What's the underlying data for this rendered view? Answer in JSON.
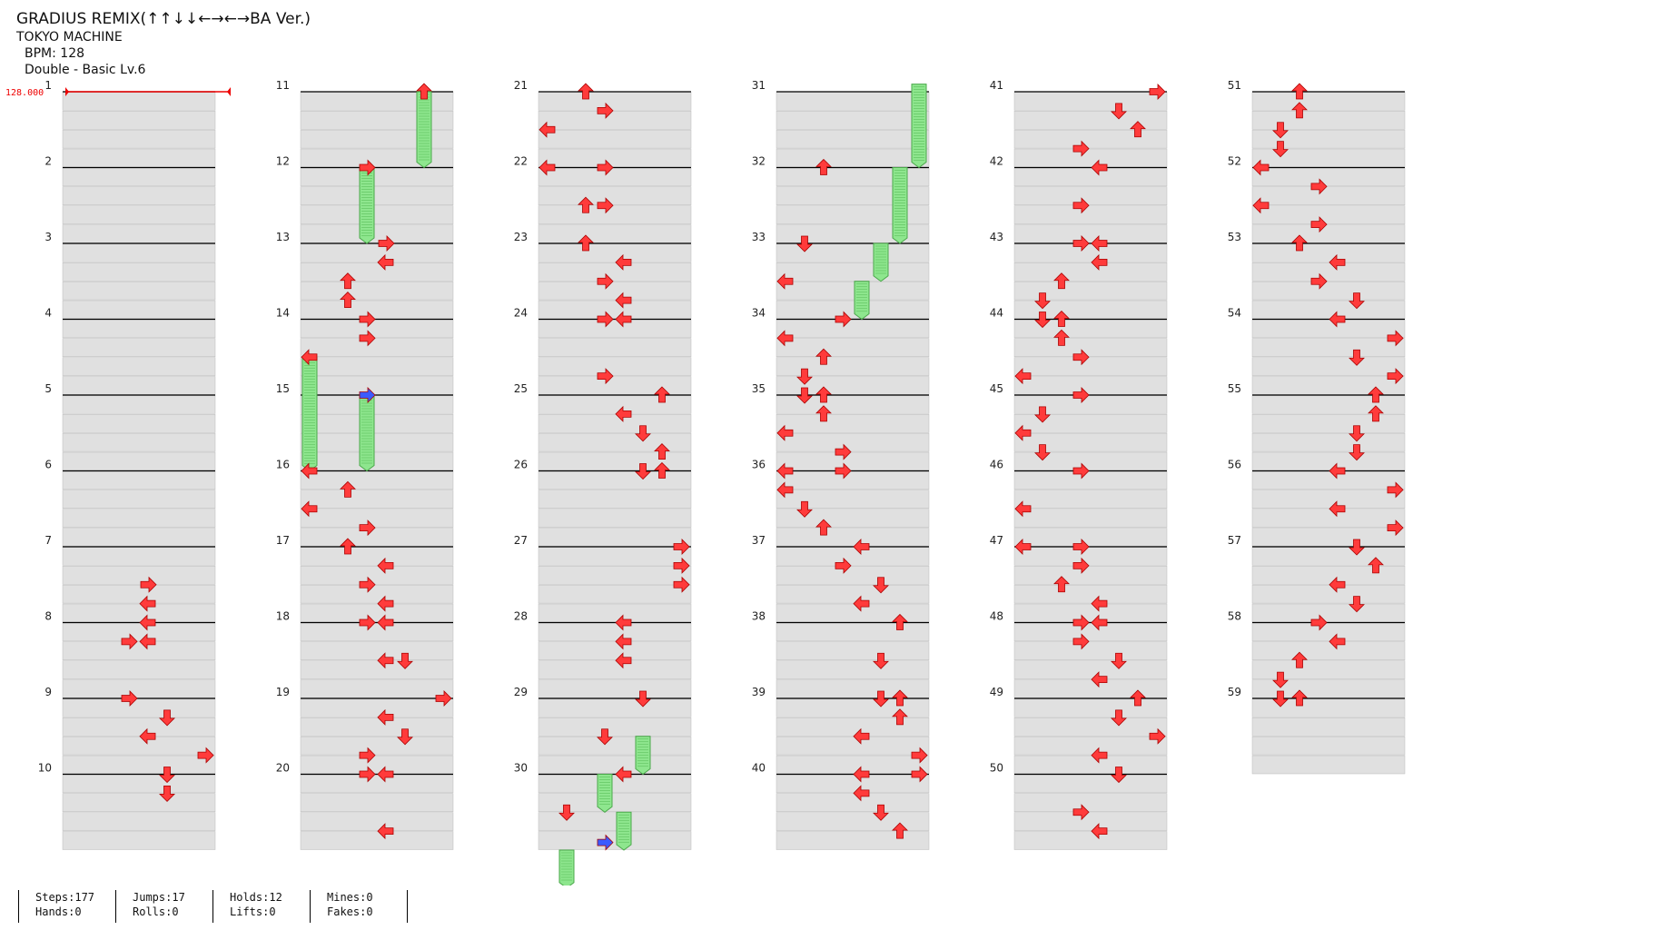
{
  "header": {
    "title": "GRADIUS REMIX(↑↑↓↓←→←→BA Ver.)",
    "artist": "TOKYO MACHINE",
    "bpm": "BPM: 128",
    "difficulty": "Double - Basic  Lv.6"
  },
  "bpm_marker": "128.000",
  "measure_numbers": [
    "1",
    "2",
    "3",
    "4",
    "5",
    "6",
    "7",
    "8",
    "9",
    "10",
    "11",
    "12",
    "13",
    "14",
    "15",
    "16",
    "17",
    "18",
    "19",
    "20",
    "21",
    "22",
    "23",
    "24",
    "25",
    "26",
    "27",
    "28",
    "29",
    "30",
    "31",
    "32",
    "33",
    "34",
    "35",
    "36",
    "37",
    "38",
    "39",
    "40",
    "41",
    "42",
    "43",
    "44",
    "45",
    "46",
    "47",
    "48",
    "49",
    "50",
    "51",
    "52",
    "53",
    "54",
    "55",
    "56",
    "57",
    "58",
    "59"
  ],
  "stats": [
    {
      "top": "Steps:177",
      "bottom": "Hands:0"
    },
    {
      "top": "Jumps:17",
      "bottom": "Rolls:0"
    },
    {
      "top": "Holds:12",
      "bottom": "Lifts:0"
    },
    {
      "top": "Mines:0",
      "bottom": "Fakes:0"
    }
  ],
  "colors": {
    "arrow": "#ff3b3b",
    "arrow_quarter": "#3b5bff",
    "hold": "#8ee68e",
    "band": "#e0e0e0",
    "line": "#000000",
    "bpm": "#ee0000"
  },
  "chart_data": {
    "type": "step-chart",
    "lanes": [
      "left",
      "down",
      "up",
      "right",
      "left",
      "down",
      "up",
      "right"
    ],
    "columns": [
      {
        "measures": [
          "1",
          "2",
          "3",
          "4",
          "5",
          "6",
          "7",
          "8",
          "9",
          "10"
        ]
      },
      {
        "measures": [
          "11",
          "12",
          "13",
          "14",
          "15",
          "16",
          "17",
          "18",
          "19",
          "20"
        ]
      },
      {
        "measures": [
          "21",
          "22",
          "23",
          "24",
          "25",
          "26",
          "27",
          "28",
          "29",
          "30"
        ]
      },
      {
        "measures": [
          "31",
          "32",
          "33",
          "34",
          "35",
          "36",
          "37",
          "38",
          "39",
          "40"
        ]
      },
      {
        "measures": [
          "41",
          "42",
          "43",
          "44",
          "45",
          "46",
          "47",
          "48",
          "49",
          "50"
        ]
      },
      {
        "measures": [
          "51",
          "52",
          "53",
          "54",
          "55",
          "56",
          "57",
          "58",
          "59"
        ]
      }
    ],
    "notes": [
      [
        0,
        6.5,
        4,
        "right"
      ],
      [
        0,
        6.75,
        4,
        "left"
      ],
      [
        0,
        7,
        4,
        "left"
      ],
      [
        0,
        7.25,
        3,
        "right"
      ],
      [
        0,
        7.25,
        4,
        "left"
      ],
      [
        0,
        8,
        3,
        "right"
      ],
      [
        0,
        8.25,
        5,
        "down"
      ],
      [
        0,
        8.5,
        4,
        "left"
      ],
      [
        0,
        8.75,
        7,
        "right"
      ],
      [
        0,
        9,
        5,
        "down"
      ],
      [
        0,
        9.25,
        5,
        "down"
      ],
      [
        1,
        0,
        6,
        "up"
      ],
      [
        1,
        1,
        3,
        "right"
      ],
      [
        1,
        2,
        4,
        "right"
      ],
      [
        1,
        2.25,
        4,
        "left"
      ],
      [
        1,
        2.5,
        2,
        "up"
      ],
      [
        1,
        2.75,
        2,
        "up"
      ],
      [
        1,
        3,
        3,
        "right"
      ],
      [
        1,
        3.25,
        3,
        "right"
      ],
      [
        1,
        3.5,
        0,
        "left"
      ],
      [
        1,
        4,
        3,
        "right",
        "blue"
      ],
      [
        1,
        5,
        0,
        "left"
      ],
      [
        1,
        5.25,
        2,
        "up"
      ],
      [
        1,
        5.5,
        0,
        "left"
      ],
      [
        1,
        5.75,
        3,
        "right"
      ],
      [
        1,
        6,
        2,
        "up"
      ],
      [
        1,
        6.25,
        4,
        "left"
      ],
      [
        1,
        6.5,
        3,
        "right"
      ],
      [
        1,
        6.75,
        4,
        "left"
      ],
      [
        1,
        7,
        3,
        "right"
      ],
      [
        1,
        7,
        4,
        "left"
      ],
      [
        1,
        7.5,
        4,
        "left"
      ],
      [
        1,
        7.5,
        5,
        "down"
      ],
      [
        1,
        8,
        7,
        "right"
      ],
      [
        1,
        8.25,
        4,
        "left"
      ],
      [
        1,
        8.5,
        5,
        "down"
      ],
      [
        1,
        8.75,
        3,
        "right"
      ],
      [
        1,
        9,
        3,
        "right"
      ],
      [
        1,
        9,
        4,
        "left"
      ],
      [
        1,
        9.75,
        4,
        "left"
      ],
      [
        2,
        0,
        2,
        "up"
      ],
      [
        2,
        0.25,
        3,
        "right"
      ],
      [
        2,
        0.5,
        0,
        "left"
      ],
      [
        2,
        1,
        0,
        "left"
      ],
      [
        2,
        1,
        3,
        "right"
      ],
      [
        2,
        1.5,
        2,
        "up"
      ],
      [
        2,
        1.5,
        3,
        "right"
      ],
      [
        2,
        2,
        2,
        "up"
      ],
      [
        2,
        2.25,
        4,
        "left"
      ],
      [
        2,
        2.5,
        3,
        "right"
      ],
      [
        2,
        2.75,
        4,
        "left"
      ],
      [
        2,
        3,
        3,
        "right"
      ],
      [
        2,
        3,
        4,
        "left"
      ],
      [
        2,
        3.75,
        3,
        "right"
      ],
      [
        2,
        4,
        6,
        "up"
      ],
      [
        2,
        4.25,
        4,
        "left"
      ],
      [
        2,
        4.5,
        5,
        "down"
      ],
      [
        2,
        4.75,
        6,
        "up"
      ],
      [
        2,
        5,
        5,
        "down"
      ],
      [
        2,
        5,
        6,
        "up"
      ],
      [
        2,
        6,
        7,
        "right"
      ],
      [
        2,
        6.25,
        7,
        "right"
      ],
      [
        2,
        6.5,
        7,
        "right"
      ],
      [
        2,
        7,
        4,
        "left"
      ],
      [
        2,
        7.25,
        4,
        "left"
      ],
      [
        2,
        7.5,
        4,
        "left"
      ],
      [
        2,
        8,
        5,
        "down"
      ],
      [
        2,
        8.5,
        3,
        "down"
      ],
      [
        2,
        9,
        4,
        "left"
      ],
      [
        2,
        9.5,
        1,
        "down"
      ],
      [
        2,
        9.9,
        3,
        "right",
        "blue"
      ],
      [
        3,
        1,
        2,
        "up"
      ],
      [
        3,
        2,
        1,
        "down"
      ],
      [
        3,
        2.5,
        0,
        "left"
      ],
      [
        3,
        3,
        3,
        "right"
      ],
      [
        3,
        3.25,
        0,
        "left"
      ],
      [
        3,
        3.5,
        2,
        "up"
      ],
      [
        3,
        3.75,
        1,
        "down"
      ],
      [
        3,
        4,
        1,
        "down"
      ],
      [
        3,
        4,
        2,
        "up"
      ],
      [
        3,
        4.25,
        2,
        "up"
      ],
      [
        3,
        4.5,
        0,
        "left"
      ],
      [
        3,
        4.75,
        3,
        "right"
      ],
      [
        3,
        5,
        0,
        "left"
      ],
      [
        3,
        5,
        3,
        "right"
      ],
      [
        3,
        5.25,
        0,
        "left"
      ],
      [
        3,
        5.5,
        1,
        "down"
      ],
      [
        3,
        5.75,
        2,
        "up"
      ],
      [
        3,
        6,
        4,
        "left"
      ],
      [
        3,
        6.25,
        3,
        "right"
      ],
      [
        3,
        6.5,
        5,
        "down"
      ],
      [
        3,
        6.75,
        4,
        "left"
      ],
      [
        3,
        7,
        6,
        "up"
      ],
      [
        3,
        7.5,
        5,
        "down"
      ],
      [
        3,
        8,
        5,
        "down"
      ],
      [
        3,
        8,
        6,
        "up"
      ],
      [
        3,
        8.25,
        6,
        "up"
      ],
      [
        3,
        8.5,
        4,
        "left"
      ],
      [
        3,
        8.75,
        7,
        "right"
      ],
      [
        3,
        9,
        4,
        "left"
      ],
      [
        3,
        9,
        7,
        "right"
      ],
      [
        3,
        9.25,
        4,
        "left"
      ],
      [
        3,
        9.5,
        5,
        "down"
      ],
      [
        3,
        9.75,
        6,
        "up"
      ],
      [
        4,
        0,
        7,
        "right"
      ],
      [
        4,
        0.25,
        5,
        "down"
      ],
      [
        4,
        0.5,
        6,
        "up"
      ],
      [
        4,
        0.75,
        3,
        "right"
      ],
      [
        4,
        1,
        4,
        "left"
      ],
      [
        4,
        1.5,
        3,
        "right"
      ],
      [
        4,
        2,
        3,
        "right"
      ],
      [
        4,
        2,
        4,
        "left"
      ],
      [
        4,
        2.25,
        4,
        "left"
      ],
      [
        4,
        2.5,
        2,
        "up"
      ],
      [
        4,
        2.75,
        1,
        "down"
      ],
      [
        4,
        3,
        1,
        "down"
      ],
      [
        4,
        3,
        2,
        "up"
      ],
      [
        4,
        3.25,
        2,
        "up"
      ],
      [
        4,
        3.5,
        3,
        "right"
      ],
      [
        4,
        3.75,
        0,
        "left"
      ],
      [
        4,
        4,
        3,
        "right"
      ],
      [
        4,
        4.25,
        1,
        "down"
      ],
      [
        4,
        4.5,
        0,
        "left"
      ],
      [
        4,
        4.75,
        1,
        "down"
      ],
      [
        4,
        5,
        3,
        "right"
      ],
      [
        4,
        5.5,
        0,
        "left"
      ],
      [
        4,
        6,
        0,
        "left"
      ],
      [
        4,
        6,
        3,
        "right"
      ],
      [
        4,
        6.25,
        3,
        "right"
      ],
      [
        4,
        6.5,
        2,
        "up"
      ],
      [
        4,
        6.75,
        4,
        "left"
      ],
      [
        4,
        7,
        3,
        "right"
      ],
      [
        4,
        7,
        4,
        "left"
      ],
      [
        4,
        7.25,
        3,
        "right"
      ],
      [
        4,
        7.5,
        5,
        "down"
      ],
      [
        4,
        7.75,
        4,
        "left"
      ],
      [
        4,
        8,
        6,
        "up"
      ],
      [
        4,
        8.25,
        5,
        "down"
      ],
      [
        4,
        8.5,
        7,
        "right"
      ],
      [
        4,
        8.75,
        4,
        "left"
      ],
      [
        4,
        9,
        5,
        "down"
      ],
      [
        4,
        9.5,
        3,
        "right"
      ],
      [
        4,
        9.75,
        4,
        "left"
      ],
      [
        5,
        0,
        2,
        "up"
      ],
      [
        5,
        0.25,
        2,
        "up"
      ],
      [
        5,
        0.5,
        1,
        "down"
      ],
      [
        5,
        0.75,
        1,
        "down"
      ],
      [
        5,
        1,
        0,
        "left"
      ],
      [
        5,
        1.25,
        3,
        "right"
      ],
      [
        5,
        1.5,
        0,
        "left"
      ],
      [
        5,
        1.75,
        3,
        "right"
      ],
      [
        5,
        2,
        2,
        "up"
      ],
      [
        5,
        2.25,
        4,
        "left"
      ],
      [
        5,
        2.5,
        3,
        "right"
      ],
      [
        5,
        2.75,
        5,
        "down"
      ],
      [
        5,
        3,
        4,
        "left"
      ],
      [
        5,
        3.25,
        7,
        "right"
      ],
      [
        5,
        3.5,
        5,
        "down"
      ],
      [
        5,
        3.75,
        7,
        "right"
      ],
      [
        5,
        4,
        6,
        "up"
      ],
      [
        5,
        4.25,
        6,
        "up"
      ],
      [
        5,
        4.5,
        5,
        "down"
      ],
      [
        5,
        4.75,
        5,
        "down"
      ],
      [
        5,
        5,
        4,
        "left"
      ],
      [
        5,
        5.25,
        7,
        "right"
      ],
      [
        5,
        5.5,
        4,
        "left"
      ],
      [
        5,
        5.75,
        7,
        "right"
      ],
      [
        5,
        6,
        5,
        "down"
      ],
      [
        5,
        6.25,
        6,
        "up"
      ],
      [
        5,
        6.5,
        4,
        "left"
      ],
      [
        5,
        6.75,
        5,
        "down"
      ],
      [
        5,
        7,
        3,
        "right"
      ],
      [
        5,
        7.25,
        4,
        "left"
      ],
      [
        5,
        7.5,
        2,
        "up"
      ],
      [
        5,
        7.75,
        1,
        "down"
      ],
      [
        5,
        8,
        1,
        "down"
      ],
      [
        5,
        8,
        2,
        "up"
      ]
    ],
    "holds": [
      [
        1,
        0,
        1,
        6
      ],
      [
        1,
        1,
        2,
        3
      ],
      [
        1,
        3.5,
        5,
        0
      ],
      [
        1,
        4,
        5,
        3
      ],
      [
        2,
        8.5,
        9,
        5
      ],
      [
        2,
        9,
        9.5,
        3
      ],
      [
        2,
        9.5,
        10,
        4
      ],
      [
        2,
        10,
        10.5,
        1
      ],
      [
        3,
        -0.1,
        1,
        7
      ],
      [
        3,
        1,
        2,
        6
      ],
      [
        3,
        2,
        2.5,
        5
      ],
      [
        3,
        2.5,
        3,
        4
      ]
    ]
  }
}
